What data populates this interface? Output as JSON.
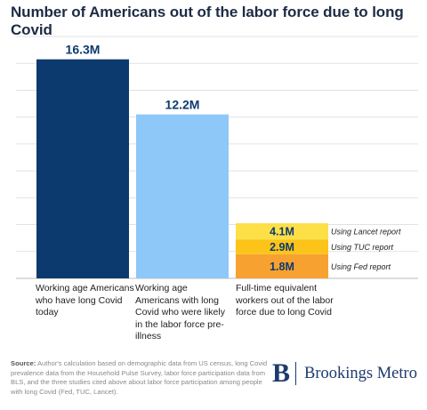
{
  "chart_data": {
    "type": "bar",
    "title": "Number of Americans out of the labor force due to long Covid",
    "categories": [
      "Working age Americans who have long Covid today",
      "Working age Americans with long Covid who were likely in the labor force pre-illness",
      "Full-time equivalent workers out of the labor force due to long Covid"
    ],
    "ylim": [
      0,
      18
    ],
    "grid": true,
    "bars": [
      {
        "value": 16.3,
        "label": "16.3M",
        "color": "#0d3a6e",
        "label_color": "#0d3a6e"
      },
      {
        "value": 12.2,
        "label": "12.2M",
        "color": "#8ec8f9",
        "label_color": "#0d3a6e"
      }
    ],
    "stacked": {
      "segments": [
        {
          "value": 1.8,
          "label": "1.8M",
          "color": "#f7a131",
          "annotation": "Using Fed report"
        },
        {
          "value": 1.1,
          "label": "2.9M",
          "color": "#fcc419",
          "annotation": "Using TUC report"
        },
        {
          "value": 1.2,
          "label": "4.1M",
          "color": "#fde047",
          "annotation": "Using Lancet report"
        }
      ],
      "value_label_color": "#0d3a6e"
    }
  },
  "source": {
    "prefix": "Source:",
    "text": "Author's calculation based on demographic data from US census, long Covid prevalence data from the Household Pulse Survey, labor force participation data from BLS, and the three studies cited above about labor force participation among people with long Covid (Fed, TUC, Lancet)."
  },
  "logo": {
    "mark": "B",
    "text": "Brookings Metro"
  }
}
